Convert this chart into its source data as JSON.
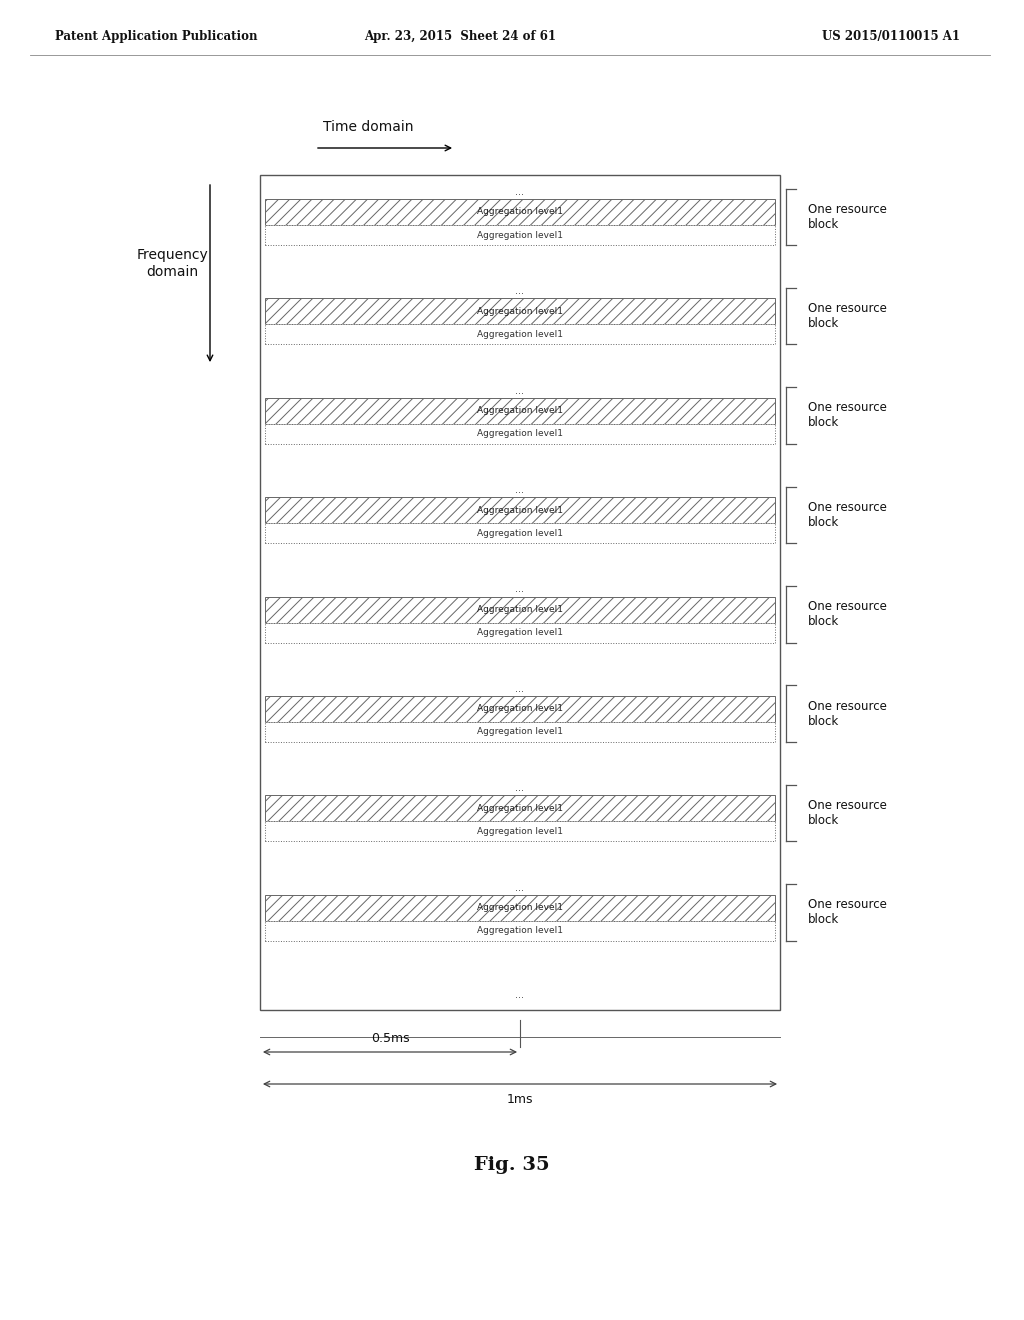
{
  "title_left": "Patent Application Publication",
  "title_center": "Apr. 23, 2015  Sheet 24 of 61",
  "title_right": "US 2015/0110015 A1",
  "fig_label": "Fig. 35",
  "time_domain_label": "Time domain",
  "freq_domain_label": "Frequency\ndomain",
  "hatched_label": "Aggregation level1",
  "plain_label": "Aggregation level1",
  "resource_block_label": "One resource\nblock",
  "dots": "...",
  "ms_05": "0.5ms",
  "ms_1": "1ms",
  "num_blocks": 8,
  "bg_color": "#ffffff",
  "text_color": "#111111"
}
